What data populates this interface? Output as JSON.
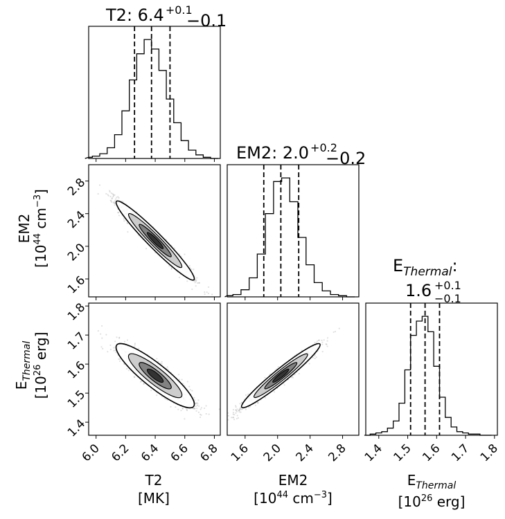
{
  "chart_data": {
    "type": "corner",
    "parameters": [
      {
        "name": "T2",
        "unit": "[MK]",
        "title_name": "T2",
        "median": "6.4",
        "err_plus": "+0.1",
        "err_minus": "−0.1",
        "ticks": [
          6.0,
          6.2,
          6.4,
          6.6,
          6.8
        ],
        "tick_labels": [
          "6.0",
          "6.2",
          "6.4",
          "6.6",
          "6.8"
        ],
        "range": [
          5.95,
          6.84
        ],
        "quantiles": [
          6.26,
          6.375,
          6.5
        ]
      },
      {
        "name": "EM2",
        "unit": "[10^44 cm^-3]",
        "title_name": "EM2",
        "median": "2.0",
        "err_plus": "+0.2",
        "err_minus": "−0.2",
        "ticks": [
          1.6,
          2.0,
          2.4,
          2.8
        ],
        "tick_labels": [
          "1.6",
          "2.0",
          "2.4",
          "2.8"
        ],
        "range": [
          1.38,
          3.0
        ],
        "quantiles": [
          1.83,
          2.04,
          2.26
        ]
      },
      {
        "name": "E_Thermal",
        "unit": "[10^26 erg]",
        "title_name": "E_Thermal:",
        "median": "1.6",
        "err_plus": "+0.1",
        "err_minus": "−0.1",
        "ticks": [
          1.4,
          1.5,
          1.6,
          1.7,
          1.8
        ],
        "tick_labels": [
          "1.4",
          "1.5",
          "1.6",
          "1.7",
          "1.8"
        ],
        "range": [
          1.355,
          1.81
        ],
        "quantiles": [
          1.51,
          1.56,
          1.61
        ]
      }
    ],
    "histograms": [
      {
        "x": [
          5.95,
          6.0,
          6.05,
          6.1,
          6.15,
          6.2,
          6.25,
          6.3,
          6.35,
          6.4,
          6.45,
          6.5,
          6.55,
          6.6,
          6.65,
          6.7,
          6.75,
          6.8
        ],
        "counts": [
          1,
          2,
          4,
          9,
          20,
          40,
          66,
          88,
          100,
          92,
          74,
          50,
          30,
          15,
          7,
          3,
          1,
          0
        ]
      },
      {
        "x": [
          1.4,
          1.5,
          1.6,
          1.7,
          1.8,
          1.9,
          2.0,
          2.1,
          2.2,
          2.3,
          2.4,
          2.5,
          2.6,
          2.7,
          2.8,
          2.9
        ],
        "counts": [
          1,
          2,
          6,
          16,
          36,
          70,
          97,
          100,
          80,
          50,
          27,
          12,
          5,
          2,
          1,
          0
        ]
      },
      {
        "x": [
          1.36,
          1.38,
          1.4,
          1.42,
          1.44,
          1.46,
          1.48,
          1.5,
          1.52,
          1.54,
          1.56,
          1.58,
          1.6,
          1.62,
          1.64,
          1.66,
          1.68,
          1.7,
          1.72,
          1.74,
          1.76,
          1.78
        ],
        "counts": [
          0,
          1,
          2,
          3,
          6,
          12,
          27,
          55,
          84,
          96,
          100,
          87,
          58,
          32,
          15,
          7,
          3,
          2,
          1,
          1,
          0,
          0
        ]
      }
    ],
    "pairs": [
      {
        "x": "T2",
        "y": "EM2",
        "center": [
          6.4,
          2.07
        ],
        "x_sigma": 0.12,
        "y_sigma": 0.22,
        "correlation": -0.97
      },
      {
        "x": "T2",
        "y": "E_Thermal",
        "center": [
          6.4,
          1.56
        ],
        "x_sigma": 0.12,
        "y_sigma": 0.05,
        "correlation": -0.9
      },
      {
        "x": "EM2",
        "y": "E_Thermal",
        "center": [
          2.04,
          1.56
        ],
        "x_sigma": 0.22,
        "y_sigma": 0.05,
        "correlation": 0.97
      }
    ]
  }
}
